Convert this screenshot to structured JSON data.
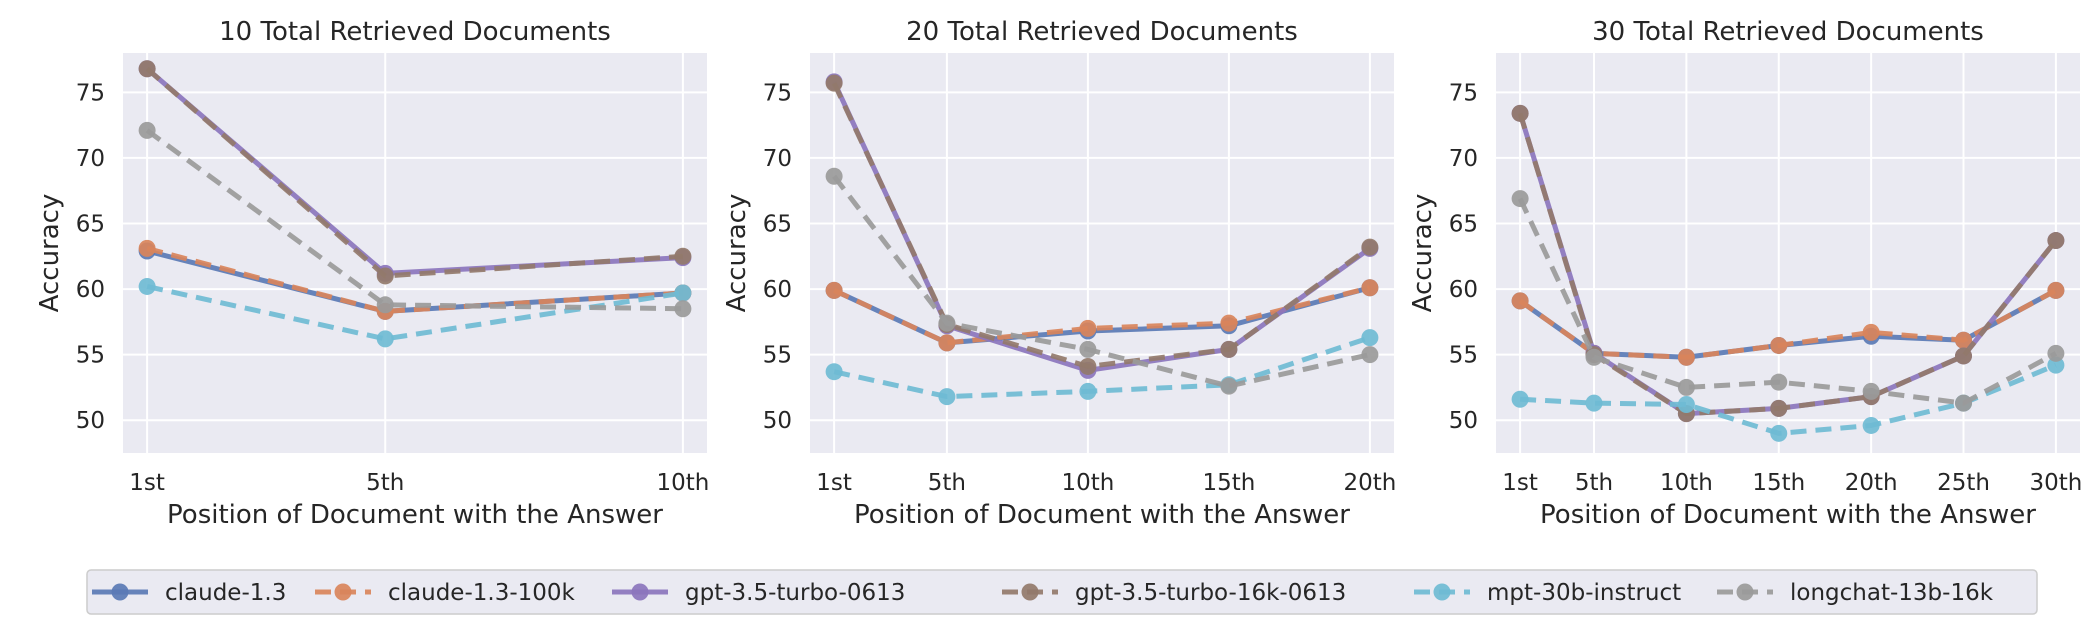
{
  "figure": {
    "legend_placement": "bottom-center",
    "series_styles": [
      {
        "name": "claude-1.3",
        "color": "#5a79b5",
        "dash": "solid"
      },
      {
        "name": "claude-1.3-100k",
        "color": "#d9845b",
        "dash": "dashed"
      },
      {
        "name": "gpt-3.5-turbo-0613",
        "color": "#8b75bd",
        "dash": "solid"
      },
      {
        "name": "gpt-3.5-turbo-16k-0613",
        "color": "#937a6b",
        "dash": "dashed"
      },
      {
        "name": "mpt-30b-instruct",
        "color": "#6fbbd4",
        "dash": "dashed"
      },
      {
        "name": "longchat-13b-16k",
        "color": "#9a9a9a",
        "dash": "dashed"
      }
    ],
    "background": "#eaeaf2",
    "grid": true
  },
  "chart_data": [
    {
      "type": "line",
      "title": "10 Total Retrieved Documents",
      "xlabel": "Position of Document with the Answer",
      "ylabel": "Accuracy",
      "x": [
        1,
        5,
        10
      ],
      "categories": [
        "1st",
        "5th",
        "10th"
      ],
      "ylim": [
        47.5,
        78
      ],
      "yticks": [
        50,
        55,
        60,
        65,
        70,
        75
      ],
      "series": [
        {
          "name": "claude-1.3",
          "values": [
            62.9,
            58.3,
            59.7
          ]
        },
        {
          "name": "claude-1.3-100k",
          "values": [
            63.1,
            58.3,
            59.7
          ]
        },
        {
          "name": "gpt-3.5-turbo-0613",
          "values": [
            76.8,
            61.2,
            62.4
          ]
        },
        {
          "name": "gpt-3.5-turbo-16k-0613",
          "values": [
            76.8,
            61.0,
            62.5
          ]
        },
        {
          "name": "mpt-30b-instruct",
          "values": [
            60.2,
            56.2,
            59.7
          ]
        },
        {
          "name": "longchat-13b-16k",
          "values": [
            72.1,
            58.8,
            58.5
          ]
        }
      ]
    },
    {
      "type": "line",
      "title": "20 Total Retrieved Documents",
      "xlabel": "Position of Document with the Answer",
      "ylabel": "Accuracy",
      "x": [
        1,
        5,
        10,
        15,
        20
      ],
      "categories": [
        "1st",
        "5th",
        "10th",
        "15th",
        "20th"
      ],
      "ylim": [
        47.5,
        78
      ],
      "yticks": [
        50,
        55,
        60,
        65,
        70,
        75
      ],
      "series": [
        {
          "name": "claude-1.3",
          "values": [
            59.9,
            55.9,
            56.8,
            57.2,
            60.1
          ]
        },
        {
          "name": "claude-1.3-100k",
          "values": [
            59.9,
            55.9,
            57.0,
            57.4,
            60.1
          ]
        },
        {
          "name": "gpt-3.5-turbo-0613",
          "values": [
            75.8,
            57.2,
            53.8,
            55.4,
            63.1
          ]
        },
        {
          "name": "gpt-3.5-turbo-16k-0613",
          "values": [
            75.7,
            57.3,
            54.1,
            55.4,
            63.2
          ]
        },
        {
          "name": "mpt-30b-instruct",
          "values": [
            53.7,
            51.8,
            52.2,
            52.7,
            56.3
          ]
        },
        {
          "name": "longchat-13b-16k",
          "values": [
            68.6,
            57.4,
            55.4,
            52.6,
            55.0
          ]
        }
      ]
    },
    {
      "type": "line",
      "title": "30 Total Retrieved Documents",
      "xlabel": "Position of Document with the Answer",
      "ylabel": "Accuracy",
      "x": [
        1,
        5,
        10,
        15,
        20,
        25,
        30
      ],
      "categories": [
        "1st",
        "5th",
        "10th",
        "15th",
        "20th",
        "25th",
        "30th"
      ],
      "ylim": [
        47.5,
        78
      ],
      "yticks": [
        50,
        55,
        60,
        65,
        70,
        75
      ],
      "series": [
        {
          "name": "claude-1.3",
          "values": [
            59.1,
            55.1,
            54.8,
            55.7,
            56.4,
            56.1,
            59.9
          ]
        },
        {
          "name": "claude-1.3-100k",
          "values": [
            59.1,
            55.1,
            54.8,
            55.7,
            56.7,
            56.1,
            59.9
          ]
        },
        {
          "name": "gpt-3.5-turbo-0613",
          "values": [
            73.4,
            55.1,
            50.5,
            50.9,
            51.8,
            54.9,
            63.7
          ]
        },
        {
          "name": "gpt-3.5-turbo-16k-0613",
          "values": [
            73.4,
            55.0,
            50.5,
            50.9,
            51.8,
            54.9,
            63.7
          ]
        },
        {
          "name": "mpt-30b-instruct",
          "values": [
            51.6,
            51.3,
            51.2,
            49.0,
            49.6,
            51.3,
            54.2
          ]
        },
        {
          "name": "longchat-13b-16k",
          "values": [
            66.9,
            54.8,
            52.5,
            52.9,
            52.2,
            51.3,
            55.1
          ]
        }
      ]
    }
  ]
}
